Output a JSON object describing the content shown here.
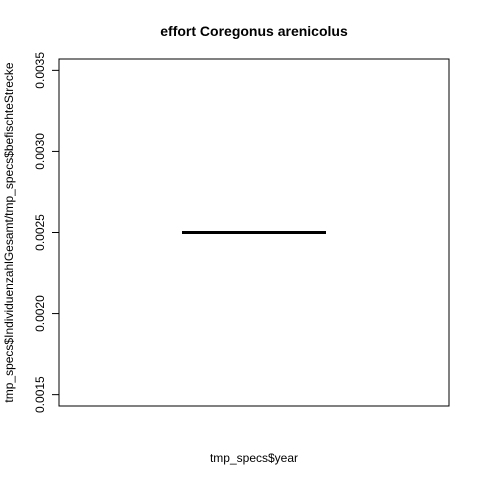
{
  "chart_data": {
    "type": "box",
    "title": "effort Coregonus arenicolus",
    "xlabel": "tmp_specs$year",
    "ylabel": "tmp_specs$IndividuenzahlGesamt/tmp_specs$befischteStrecke",
    "ylim": [
      0.00143,
      0.00357
    ],
    "yticks": [
      0.0015,
      0.002,
      0.0025,
      0.003,
      0.0035
    ],
    "ytick_labels": [
      "0.0015",
      "0.0020",
      "0.0025",
      "0.0030",
      "0.0035"
    ],
    "median": 0.0025,
    "grid": false,
    "legend": "none"
  }
}
